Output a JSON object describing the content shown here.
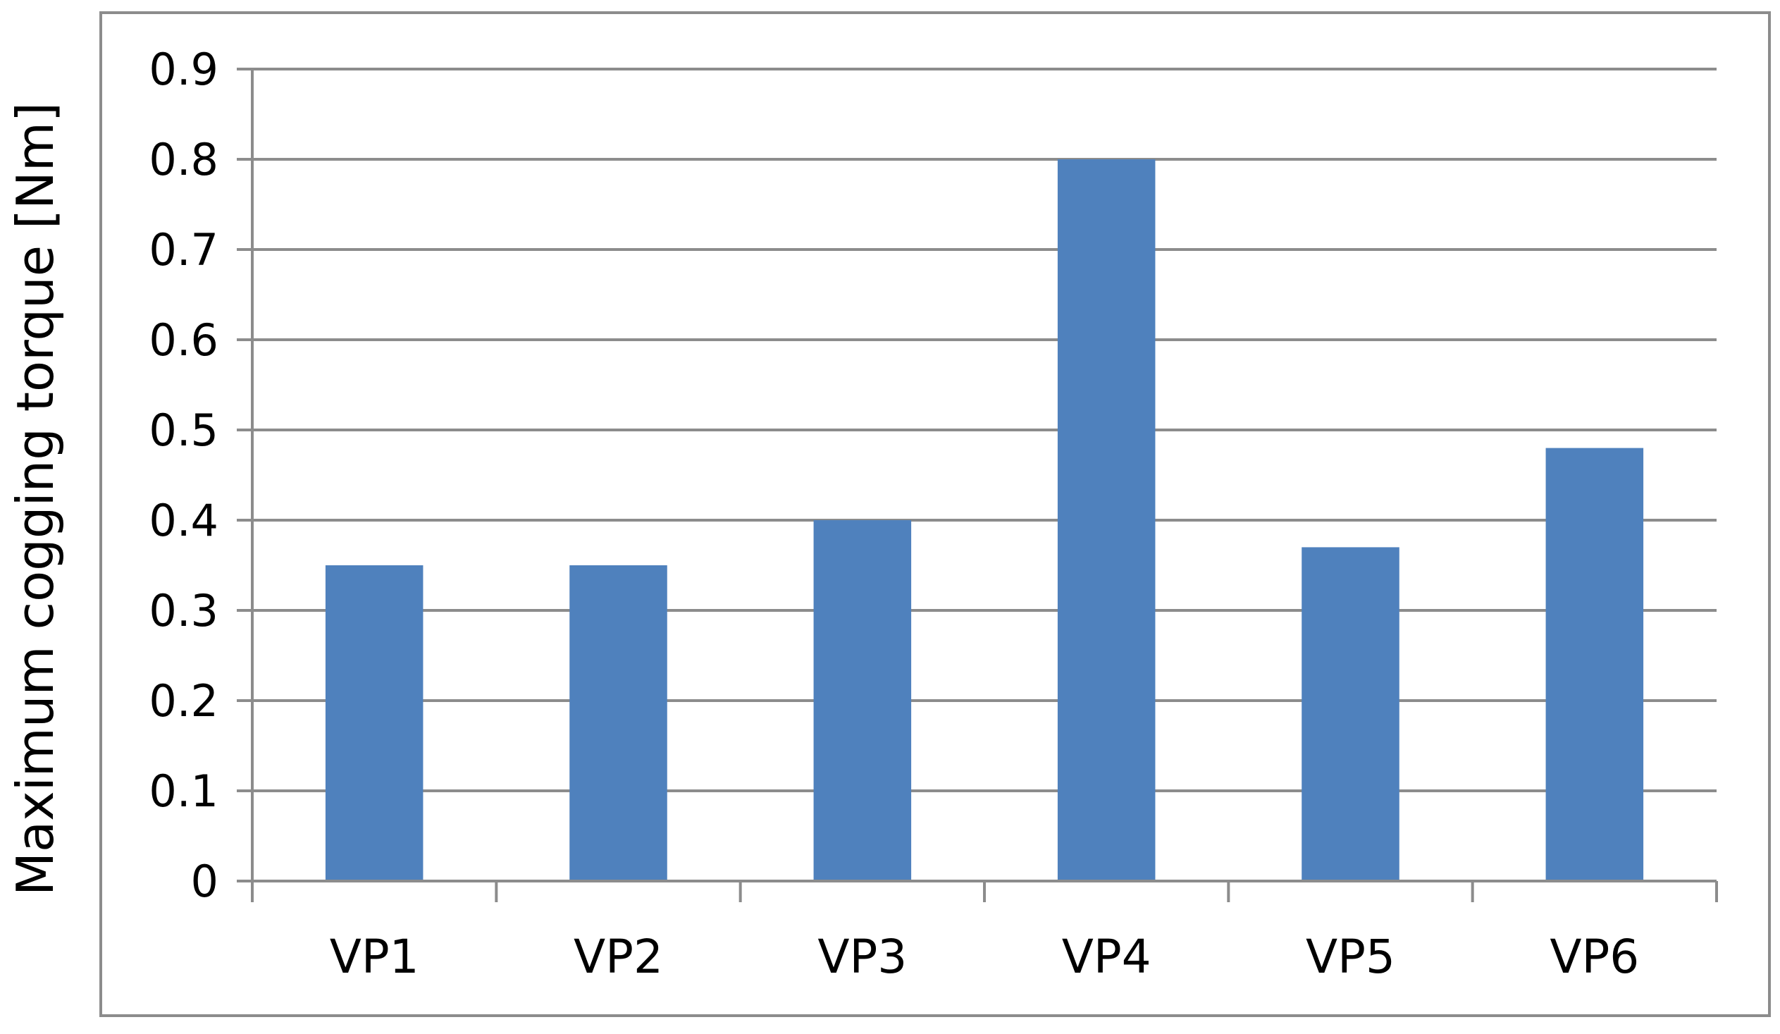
{
  "chart_data": {
    "type": "bar",
    "title": "",
    "xlabel": "",
    "ylabel": "Maximum cogging torque [Nm]",
    "categories": [
      "VP1",
      "VP2",
      "VP3",
      "VP4",
      "VP5",
      "VP6"
    ],
    "values": [
      0.35,
      0.35,
      0.4,
      0.8,
      0.37,
      0.48
    ],
    "ylim": [
      0,
      0.9
    ],
    "yticks": [
      "0",
      "0.1",
      "0.2",
      "0.3",
      "0.4",
      "0.5",
      "0.6",
      "0.7",
      "0.8",
      "0.9"
    ],
    "grid": true,
    "legend": "none",
    "colors": {
      "bar": "#4F81BD",
      "grid": "#8C8C8C",
      "axis": "#8C8C8C",
      "frame": "#8C8C8C"
    }
  }
}
